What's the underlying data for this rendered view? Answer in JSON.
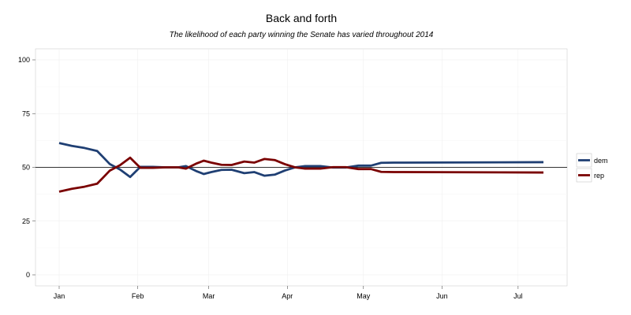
{
  "chart_data": {
    "type": "line",
    "title": "Back and forth",
    "subtitle": "The likelihood of each party winning the Senate has varied throughout 2014",
    "xlabel": "",
    "ylabel": "",
    "x_ticks": [
      "Jan",
      "Feb",
      "Mar",
      "Apr",
      "May",
      "Jun",
      "Jul"
    ],
    "xlim": [
      "2014-01-01",
      "2014-07-11"
    ],
    "y_ticks": [
      "0",
      "25",
      "50",
      "75",
      "100"
    ],
    "ylim": [
      0,
      100
    ],
    "reference_line": 50,
    "grid": true,
    "legend_position": "right",
    "x": [
      "2014-01-01",
      "2014-01-06",
      "2014-01-11",
      "2014-01-16",
      "2014-01-21",
      "2014-01-25",
      "2014-01-29",
      "2014-02-02",
      "2014-02-07",
      "2014-02-12",
      "2014-02-17",
      "2014-02-20",
      "2014-02-24",
      "2014-02-27",
      "2014-03-02",
      "2014-03-06",
      "2014-03-10",
      "2014-03-15",
      "2014-03-19",
      "2014-03-23",
      "2014-03-27",
      "2014-03-31",
      "2014-04-04",
      "2014-04-08",
      "2014-04-14",
      "2014-04-19",
      "2014-04-24",
      "2014-04-29",
      "2014-05-04",
      "2014-05-08",
      "2014-05-13",
      "2014-05-17",
      "2014-07-11"
    ],
    "series": [
      {
        "name": "dem",
        "color": "#1f3f73",
        "values": [
          61.3,
          60.0,
          59.0,
          57.6,
          51.5,
          49.0,
          45.5,
          50.2,
          50.2,
          50.0,
          50.0,
          50.6,
          48.3,
          46.9,
          47.8,
          48.8,
          48.9,
          47.3,
          47.8,
          46.1,
          46.6,
          48.5,
          50.0,
          50.6,
          50.6,
          49.9,
          49.9,
          50.8,
          50.8,
          52.1,
          52.2,
          52.2,
          52.4
        ]
      },
      {
        "name": "rep",
        "color": "#7a0000",
        "values": [
          38.7,
          40.0,
          41.0,
          42.4,
          48.5,
          51.0,
          54.5,
          49.8,
          49.8,
          50.0,
          50.0,
          49.4,
          51.7,
          53.1,
          52.2,
          51.2,
          51.1,
          52.7,
          52.2,
          53.9,
          53.4,
          51.5,
          50.0,
          49.4,
          49.4,
          50.1,
          50.1,
          49.2,
          49.2,
          47.9,
          47.8,
          47.8,
          47.6
        ]
      }
    ]
  }
}
